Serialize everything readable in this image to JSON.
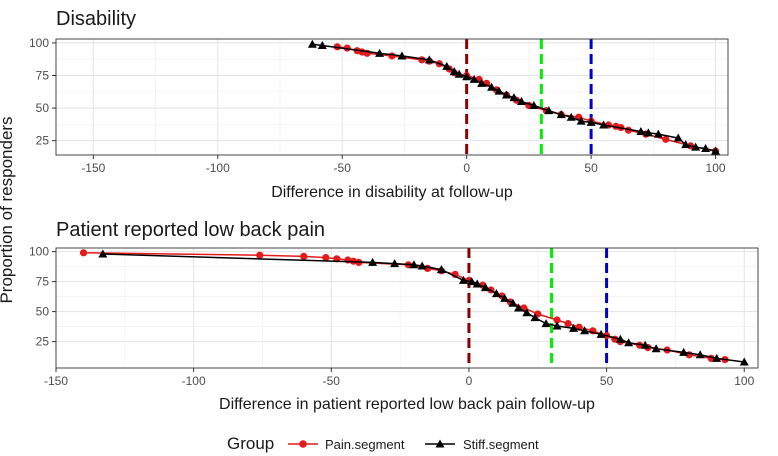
{
  "y_axis_label": "Proportion of responders",
  "legend": {
    "title": "Group",
    "items": [
      {
        "name": "Pain.segment",
        "color": "#e41a1c",
        "marker": "circle"
      },
      {
        "name": "Stiff.segment",
        "color": "#000000",
        "marker": "triangle"
      }
    ]
  },
  "chart_data": [
    {
      "type": "line",
      "title": "Disability",
      "xlabel": "Difference in disability at follow-up",
      "ylabel": "Proportion of responders",
      "xlim": [
        -165,
        105
      ],
      "ylim": [
        14,
        103
      ],
      "x_ticks": [
        -150,
        -100,
        -50,
        0,
        50,
        100
      ],
      "y_ticks": [
        25,
        50,
        75,
        100
      ],
      "grid": true,
      "reference_lines": [
        {
          "x": 0,
          "color": "#8b0000"
        },
        {
          "x": 30,
          "color": "#00ee00"
        },
        {
          "x": 50,
          "color": "#0000cc"
        }
      ],
      "series": [
        {
          "name": "Pain.segment",
          "x": [
            -52,
            -48,
            -44,
            -42,
            -40,
            -30,
            -18,
            -15,
            -11,
            -7,
            -5,
            0,
            5,
            8,
            12,
            16,
            20,
            25,
            32,
            38,
            45,
            50,
            57,
            60,
            62,
            65,
            72,
            80,
            90,
            100
          ],
          "y": [
            97,
            96,
            94,
            93,
            92,
            90,
            87,
            86,
            84,
            80,
            77,
            75,
            72,
            69,
            64,
            60,
            56,
            52,
            48,
            45,
            43,
            40,
            37,
            36,
            35,
            33,
            30,
            26,
            21,
            17
          ]
        },
        {
          "name": "Stiff.segment",
          "x": [
            -62,
            -58,
            -35,
            -26,
            -15,
            -8,
            -5,
            -3,
            0,
            3,
            6,
            10,
            13,
            16,
            19,
            22,
            27,
            33,
            38,
            42,
            46,
            50,
            55,
            70,
            73,
            77,
            85,
            88,
            92,
            96,
            100
          ],
          "y": [
            99,
            98,
            92,
            90,
            87,
            82,
            78,
            76,
            74,
            72,
            69,
            66,
            63,
            60,
            58,
            55,
            52,
            48,
            45,
            43,
            40,
            39,
            37,
            32,
            31,
            30,
            27,
            22,
            20,
            19,
            17
          ]
        }
      ]
    },
    {
      "type": "line",
      "title": "Patient reported low back pain",
      "xlabel": "Difference in patient reported low back pain follow-up",
      "ylabel": "Proportion of responders",
      "xlim": [
        -150,
        105
      ],
      "ylim": [
        3,
        103
      ],
      "x_ticks": [
        -150,
        -100,
        -50,
        0,
        50,
        100
      ],
      "y_ticks": [
        25,
        50,
        75,
        100
      ],
      "grid": true,
      "reference_lines": [
        {
          "x": 0,
          "color": "#8b0000"
        },
        {
          "x": 30,
          "color": "#00ee00"
        },
        {
          "x": 50,
          "color": "#0000cc"
        }
      ],
      "series": [
        {
          "name": "Pain.segment",
          "x": [
            -140,
            -76,
            -60,
            -52,
            -48,
            -44,
            -42,
            -40,
            -22,
            -15,
            -10,
            -5,
            0,
            5,
            8,
            12,
            15,
            20,
            25,
            32,
            36,
            40,
            45,
            50,
            53,
            55,
            62,
            65,
            72,
            80,
            88,
            93
          ],
          "y": [
            99,
            97,
            96,
            95,
            94,
            93,
            92,
            91,
            89,
            86,
            84,
            81,
            76,
            72,
            68,
            63,
            58,
            53,
            48,
            43,
            40,
            37,
            34,
            30,
            27,
            25,
            22,
            20,
            18,
            14,
            11,
            10
          ]
        },
        {
          "name": "Stiff.segment",
          "x": [
            -133,
            -35,
            -27,
            -20,
            -17,
            -10,
            -2,
            1,
            3,
            6,
            10,
            13,
            16,
            18,
            21,
            24,
            28,
            32,
            38,
            42,
            48,
            55,
            58,
            64,
            68,
            78,
            84,
            90,
            100
          ],
          "y": [
            98,
            91,
            90,
            89,
            88,
            85,
            76,
            75,
            73,
            70,
            65,
            61,
            57,
            53,
            49,
            45,
            40,
            38,
            36,
            34,
            31,
            27,
            24,
            22,
            19,
            16,
            14,
            11,
            8
          ]
        }
      ]
    }
  ]
}
